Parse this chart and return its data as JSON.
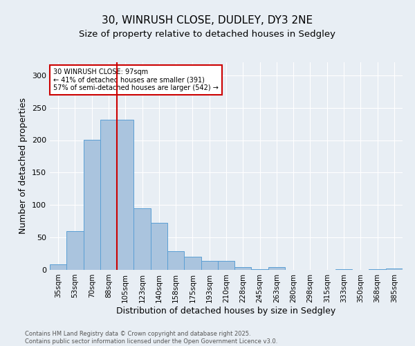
{
  "title_line1": "30, WINRUSH CLOSE, DUDLEY, DY3 2NE",
  "title_line2": "Size of property relative to detached houses in Sedgley",
  "xlabel": "Distribution of detached houses by size in Sedgley",
  "ylabel": "Number of detached properties",
  "bar_labels": [
    "35sqm",
    "53sqm",
    "70sqm",
    "88sqm",
    "105sqm",
    "123sqm",
    "140sqm",
    "158sqm",
    "175sqm",
    "193sqm",
    "210sqm",
    "228sqm",
    "245sqm",
    "263sqm",
    "280sqm",
    "298sqm",
    "315sqm",
    "333sqm",
    "350sqm",
    "368sqm",
    "385sqm"
  ],
  "bar_values": [
    9,
    60,
    201,
    232,
    232,
    95,
    73,
    29,
    20,
    14,
    14,
    4,
    1,
    4,
    0,
    0,
    0,
    1,
    0,
    1,
    2
  ],
  "bar_color": "#aac4de",
  "bar_edge_color": "#5a9fd4",
  "vline_x_idx": 3.5,
  "vline_color": "#cc0000",
  "annotation_text": "30 WINRUSH CLOSE: 97sqm\n← 41% of detached houses are smaller (391)\n57% of semi-detached houses are larger (542) →",
  "annotation_box_color": "#ffffff",
  "annotation_box_edge": "#cc0000",
  "ylim": [
    0,
    320
  ],
  "yticks": [
    0,
    50,
    100,
    150,
    200,
    250,
    300
  ],
  "bg_color": "#e8eef4",
  "footnote": "Contains HM Land Registry data © Crown copyright and database right 2025.\nContains public sector information licensed under the Open Government Licence v3.0.",
  "title_fontsize": 11,
  "subtitle_fontsize": 9.5,
  "axis_label_fontsize": 9,
  "tick_fontsize": 7.5,
  "footnote_fontsize": 6,
  "annot_fontsize": 7
}
